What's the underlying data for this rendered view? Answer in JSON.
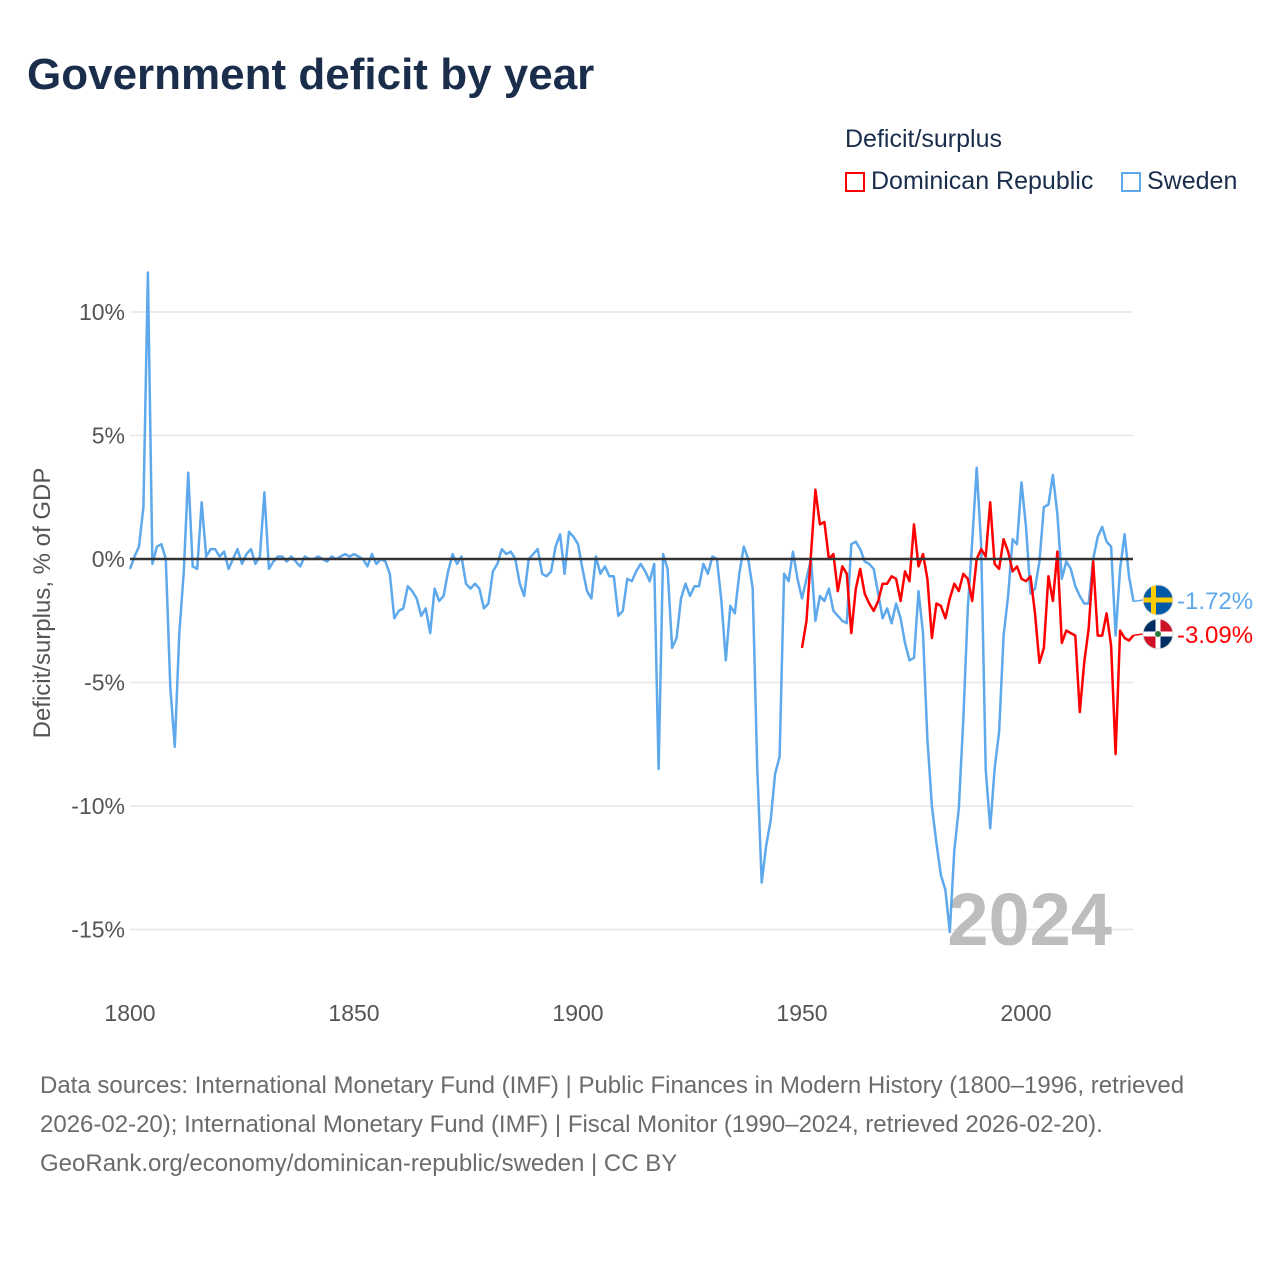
{
  "title": "Government deficit by year",
  "legend": {
    "title": "Deficit/surplus",
    "items": [
      {
        "name": "Dominican Republic",
        "color": "#ff0000"
      },
      {
        "name": "Sweden",
        "color": "#5ea8ec"
      }
    ]
  },
  "footer": {
    "sources": "Data sources: International Monetary Fund (IMF) | Public Finances in Modern History (1800–1996, retrieved 2026-02-20); International Monetary Fund (IMF) | Fiscal Monitor (1990–2024, retrieved 2026-02-20).",
    "link": "GeoRank.org/economy/dominican-republic/sweden | CC BY"
  },
  "chart_data": {
    "type": "line",
    "ylabel": "Deficit/surplus, % of GDP",
    "xlim": [
      1800,
      2024
    ],
    "ylim": [
      -17,
      12
    ],
    "xticks": [
      {
        "v": 1800,
        "label": "1800"
      },
      {
        "v": 1850,
        "label": "1850"
      },
      {
        "v": 1900,
        "label": "1900"
      },
      {
        "v": 1950,
        "label": "1950"
      },
      {
        "v": 2000,
        "label": "2000"
      }
    ],
    "yticks": [
      {
        "v": 10,
        "label": "10%"
      },
      {
        "v": 5,
        "label": "5%"
      },
      {
        "v": 0,
        "label": "0%"
      },
      {
        "v": -5,
        "label": "-5%"
      },
      {
        "v": -10,
        "label": "-10%"
      },
      {
        "v": -15,
        "label": "-15%"
      }
    ],
    "year_label": "2024",
    "series": [
      {
        "name": "Sweden",
        "color": "#5ea8ec",
        "end_label": "-1.72%",
        "flag": "sweden",
        "points": [
          [
            1800,
            -0.4
          ],
          [
            1801,
            0.1
          ],
          [
            1802,
            0.5
          ],
          [
            1803,
            2.1
          ],
          [
            1804,
            11.6
          ],
          [
            1805,
            -0.2
          ],
          [
            1806,
            0.5
          ],
          [
            1807,
            0.6
          ],
          [
            1808,
            0.0
          ],
          [
            1809,
            -5.2
          ],
          [
            1810,
            -7.6
          ],
          [
            1811,
            -3.0
          ],
          [
            1812,
            -0.5
          ],
          [
            1813,
            3.5
          ],
          [
            1814,
            -0.3
          ],
          [
            1815,
            -0.4
          ],
          [
            1816,
            2.3
          ],
          [
            1817,
            0.1
          ],
          [
            1818,
            0.4
          ],
          [
            1819,
            0.4
          ],
          [
            1820,
            0.1
          ],
          [
            1821,
            0.3
          ],
          [
            1822,
            -0.4
          ],
          [
            1823,
            0.0
          ],
          [
            1824,
            0.4
          ],
          [
            1825,
            -0.2
          ],
          [
            1826,
            0.2
          ],
          [
            1827,
            0.4
          ],
          [
            1828,
            -0.2
          ],
          [
            1829,
            0.1
          ],
          [
            1830,
            2.7
          ],
          [
            1831,
            -0.4
          ],
          [
            1832,
            -0.1
          ],
          [
            1833,
            0.1
          ],
          [
            1834,
            0.1
          ],
          [
            1835,
            -0.1
          ],
          [
            1836,
            0.1
          ],
          [
            1837,
            -0.1
          ],
          [
            1838,
            -0.3
          ],
          [
            1839,
            0.1
          ],
          [
            1840,
            0.0
          ],
          [
            1841,
            0.0
          ],
          [
            1842,
            0.1
          ],
          [
            1843,
            0.0
          ],
          [
            1844,
            -0.1
          ],
          [
            1845,
            0.1
          ],
          [
            1846,
            0.0
          ],
          [
            1847,
            0.1
          ],
          [
            1848,
            0.2
          ],
          [
            1849,
            0.1
          ],
          [
            1850,
            0.2
          ],
          [
            1851,
            0.1
          ],
          [
            1852,
            0.0
          ],
          [
            1853,
            -0.3
          ],
          [
            1854,
            0.2
          ],
          [
            1855,
            -0.2
          ],
          [
            1856,
            0.0
          ],
          [
            1857,
            -0.1
          ],
          [
            1858,
            -0.6
          ],
          [
            1859,
            -2.4
          ],
          [
            1860,
            -2.1
          ],
          [
            1861,
            -2.0
          ],
          [
            1862,
            -1.1
          ],
          [
            1863,
            -1.3
          ],
          [
            1864,
            -1.6
          ],
          [
            1865,
            -2.3
          ],
          [
            1866,
            -2.0
          ],
          [
            1867,
            -3.0
          ],
          [
            1868,
            -1.2
          ],
          [
            1869,
            -1.7
          ],
          [
            1870,
            -1.5
          ],
          [
            1871,
            -0.5
          ],
          [
            1872,
            0.2
          ],
          [
            1873,
            -0.2
          ],
          [
            1874,
            0.1
          ],
          [
            1875,
            -1.0
          ],
          [
            1876,
            -1.2
          ],
          [
            1877,
            -1.0
          ],
          [
            1878,
            -1.2
          ],
          [
            1879,
            -2.0
          ],
          [
            1880,
            -1.8
          ],
          [
            1881,
            -0.5
          ],
          [
            1882,
            -0.2
          ],
          [
            1883,
            0.4
          ],
          [
            1884,
            0.2
          ],
          [
            1885,
            0.3
          ],
          [
            1886,
            0.0
          ],
          [
            1887,
            -1.0
          ],
          [
            1888,
            -1.5
          ],
          [
            1889,
            0.0
          ],
          [
            1890,
            0.2
          ],
          [
            1891,
            0.4
          ],
          [
            1892,
            -0.6
          ],
          [
            1893,
            -0.7
          ],
          [
            1894,
            -0.5
          ],
          [
            1895,
            0.5
          ],
          [
            1896,
            1.0
          ],
          [
            1897,
            -0.6
          ],
          [
            1898,
            1.1
          ],
          [
            1899,
            0.9
          ],
          [
            1900,
            0.6
          ],
          [
            1901,
            -0.4
          ],
          [
            1902,
            -1.3
          ],
          [
            1903,
            -1.6
          ],
          [
            1904,
            0.1
          ],
          [
            1905,
            -0.6
          ],
          [
            1906,
            -0.3
          ],
          [
            1907,
            -0.7
          ],
          [
            1908,
            -0.7
          ],
          [
            1909,
            -2.3
          ],
          [
            1910,
            -2.1
          ],
          [
            1911,
            -0.8
          ],
          [
            1912,
            -0.9
          ],
          [
            1913,
            -0.5
          ],
          [
            1914,
            -0.2
          ],
          [
            1915,
            -0.5
          ],
          [
            1916,
            -0.9
          ],
          [
            1917,
            -0.2
          ],
          [
            1918,
            -8.5
          ],
          [
            1919,
            0.2
          ],
          [
            1920,
            -0.4
          ],
          [
            1921,
            -3.6
          ],
          [
            1922,
            -3.2
          ],
          [
            1923,
            -1.6
          ],
          [
            1924,
            -1.0
          ],
          [
            1925,
            -1.5
          ],
          [
            1926,
            -1.1
          ],
          [
            1927,
            -1.1
          ],
          [
            1928,
            -0.2
          ],
          [
            1929,
            -0.6
          ],
          [
            1930,
            0.1
          ],
          [
            1931,
            0.0
          ],
          [
            1932,
            -1.7
          ],
          [
            1933,
            -4.1
          ],
          [
            1934,
            -1.9
          ],
          [
            1935,
            -2.2
          ],
          [
            1936,
            -0.6
          ],
          [
            1937,
            0.5
          ],
          [
            1938,
            0.0
          ],
          [
            1939,
            -1.2
          ],
          [
            1940,
            -8.4
          ],
          [
            1941,
            -13.1
          ],
          [
            1942,
            -11.6
          ],
          [
            1943,
            -10.6
          ],
          [
            1944,
            -8.7
          ],
          [
            1945,
            -8.0
          ],
          [
            1946,
            -0.6
          ],
          [
            1947,
            -0.9
          ],
          [
            1948,
            0.3
          ],
          [
            1949,
            -0.8
          ],
          [
            1950,
            -1.6
          ],
          [
            1951,
            -0.8
          ],
          [
            1952,
            0.0
          ],
          [
            1953,
            -2.5
          ],
          [
            1954,
            -1.5
          ],
          [
            1955,
            -1.7
          ],
          [
            1956,
            -1.2
          ],
          [
            1957,
            -2.1
          ],
          [
            1958,
            -2.3
          ],
          [
            1959,
            -2.5
          ],
          [
            1960,
            -2.6
          ],
          [
            1961,
            0.6
          ],
          [
            1962,
            0.7
          ],
          [
            1963,
            0.4
          ],
          [
            1964,
            -0.1
          ],
          [
            1965,
            -0.2
          ],
          [
            1966,
            -0.4
          ],
          [
            1967,
            -1.4
          ],
          [
            1968,
            -2.4
          ],
          [
            1969,
            -2.0
          ],
          [
            1970,
            -2.6
          ],
          [
            1971,
            -1.8
          ],
          [
            1972,
            -2.4
          ],
          [
            1973,
            -3.4
          ],
          [
            1974,
            -4.1
          ],
          [
            1975,
            -4.0
          ],
          [
            1976,
            -1.3
          ],
          [
            1977,
            -3.0
          ],
          [
            1978,
            -7.3
          ],
          [
            1979,
            -10.0
          ],
          [
            1980,
            -11.5
          ],
          [
            1981,
            -12.8
          ],
          [
            1982,
            -13.4
          ],
          [
            1983,
            -15.1
          ],
          [
            1984,
            -11.8
          ],
          [
            1985,
            -10.1
          ],
          [
            1986,
            -6.5
          ],
          [
            1987,
            -2.0
          ],
          [
            1988,
            0.7
          ],
          [
            1989,
            3.7
          ],
          [
            1990,
            0.5
          ],
          [
            1991,
            -8.5
          ],
          [
            1992,
            -10.9
          ],
          [
            1993,
            -8.5
          ],
          [
            1994,
            -7.0
          ],
          [
            1995,
            -3.1
          ],
          [
            1996,
            -1.5
          ],
          [
            1997,
            0.8
          ],
          [
            1998,
            0.6
          ],
          [
            1999,
            3.1
          ],
          [
            2000,
            1.3
          ],
          [
            2001,
            -1.4
          ],
          [
            2002,
            -1.2
          ],
          [
            2003,
            -0.1
          ],
          [
            2004,
            2.1
          ],
          [
            2005,
            2.2
          ],
          [
            2006,
            3.4
          ],
          [
            2007,
            1.8
          ],
          [
            2008,
            -0.8
          ],
          [
            2009,
            -0.1
          ],
          [
            2010,
            -0.4
          ],
          [
            2011,
            -1.1
          ],
          [
            2012,
            -1.5
          ],
          [
            2013,
            -1.8
          ],
          [
            2014,
            -1.8
          ],
          [
            2015,
            0.0
          ],
          [
            2016,
            0.9
          ],
          [
            2017,
            1.3
          ],
          [
            2018,
            0.7
          ],
          [
            2019,
            0.5
          ],
          [
            2020,
            -3.1
          ],
          [
            2021,
            -0.4
          ],
          [
            2022,
            1.0
          ],
          [
            2023,
            -0.7
          ],
          [
            2024,
            -1.72
          ]
        ]
      },
      {
        "name": "Dominican Republic",
        "color": "#ff0000",
        "end_label": "-3.09%",
        "flag": "dominican-republic",
        "points": [
          [
            1950,
            -3.6
          ],
          [
            1951,
            -2.5
          ],
          [
            1952,
            0.2
          ],
          [
            1953,
            2.8
          ],
          [
            1954,
            1.4
          ],
          [
            1955,
            1.5
          ],
          [
            1956,
            0.0
          ],
          [
            1957,
            0.2
          ],
          [
            1958,
            -1.3
          ],
          [
            1959,
            -0.3
          ],
          [
            1960,
            -0.6
          ],
          [
            1961,
            -3.0
          ],
          [
            1962,
            -1.2
          ],
          [
            1963,
            -0.4
          ],
          [
            1964,
            -1.4
          ],
          [
            1965,
            -1.8
          ],
          [
            1966,
            -2.1
          ],
          [
            1967,
            -1.7
          ],
          [
            1968,
            -1.0
          ],
          [
            1969,
            -1.0
          ],
          [
            1970,
            -0.7
          ],
          [
            1971,
            -0.8
          ],
          [
            1972,
            -1.7
          ],
          [
            1973,
            -0.5
          ],
          [
            1974,
            -0.9
          ],
          [
            1975,
            1.4
          ],
          [
            1976,
            -0.3
          ],
          [
            1977,
            0.2
          ],
          [
            1978,
            -0.8
          ],
          [
            1979,
            -3.2
          ],
          [
            1980,
            -1.8
          ],
          [
            1981,
            -1.9
          ],
          [
            1982,
            -2.4
          ],
          [
            1983,
            -1.6
          ],
          [
            1984,
            -1.0
          ],
          [
            1985,
            -1.3
          ],
          [
            1986,
            -0.6
          ],
          [
            1987,
            -0.8
          ],
          [
            1988,
            -1.7
          ],
          [
            1989,
            0.0
          ],
          [
            1990,
            0.4
          ],
          [
            1991,
            0.1
          ],
          [
            1992,
            2.3
          ],
          [
            1993,
            -0.2
          ],
          [
            1994,
            -0.4
          ],
          [
            1995,
            0.8
          ],
          [
            1996,
            0.3
          ],
          [
            1997,
            -0.5
          ],
          [
            1998,
            -0.3
          ],
          [
            1999,
            -0.8
          ],
          [
            2000,
            -0.9
          ],
          [
            2001,
            -0.7
          ],
          [
            2002,
            -2.2
          ],
          [
            2003,
            -4.2
          ],
          [
            2004,
            -3.6
          ],
          [
            2005,
            -0.7
          ],
          [
            2006,
            -1.7
          ],
          [
            2007,
            0.3
          ],
          [
            2008,
            -3.4
          ],
          [
            2009,
            -2.9
          ],
          [
            2010,
            -3.0
          ],
          [
            2011,
            -3.1
          ],
          [
            2012,
            -6.2
          ],
          [
            2013,
            -4.2
          ],
          [
            2014,
            -2.8
          ],
          [
            2015,
            -0.1
          ],
          [
            2016,
            -3.1
          ],
          [
            2017,
            -3.1
          ],
          [
            2018,
            -2.2
          ],
          [
            2019,
            -3.5
          ],
          [
            2020,
            -7.9
          ],
          [
            2021,
            -2.9
          ],
          [
            2022,
            -3.2
          ],
          [
            2023,
            -3.3
          ],
          [
            2024,
            -3.09
          ]
        ]
      }
    ]
  }
}
